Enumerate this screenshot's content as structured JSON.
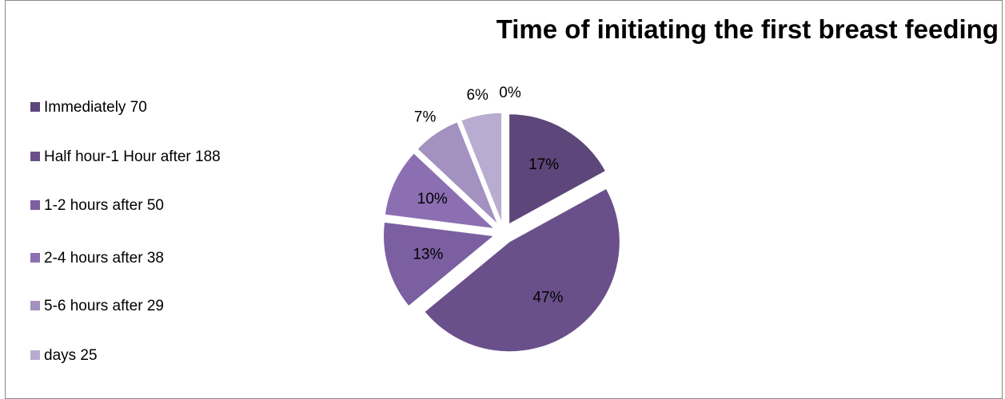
{
  "chart_data": {
    "type": "pie",
    "title": "Time of initiating the first breast feeding",
    "categories": [
      "Immediately 70",
      "Half hour-1 Hour after 188",
      "1-2 hours after 50",
      "2-4 hours after 38",
      "5-6 hours after 29",
      "days 25",
      null
    ],
    "values": [
      17,
      47,
      13,
      10,
      7,
      6,
      0
    ],
    "value_labels": [
      "17%",
      "47%",
      "13%",
      "10%",
      "7%",
      "6%",
      "0%"
    ],
    "colors": [
      "#5d4679",
      "#6a508a",
      "#7b5fa0",
      "#8c6fb3",
      "#a391c0",
      "#b9acd1",
      "#cbc2de"
    ],
    "legend": "left"
  }
}
